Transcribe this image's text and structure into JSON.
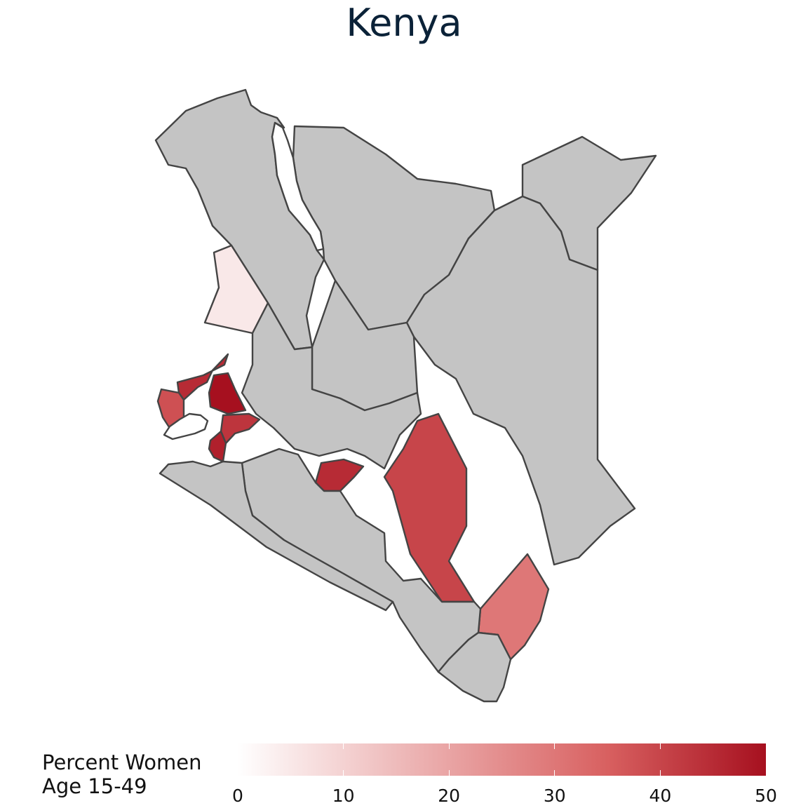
{
  "map": {
    "title": "Kenya",
    "regions": [
      {
        "name": "north-west",
        "value": null
      },
      {
        "name": "north",
        "value": null
      },
      {
        "name": "north-east",
        "value": null
      },
      {
        "name": "east",
        "value": null
      },
      {
        "name": "lodwar-sw",
        "value": 5
      },
      {
        "name": "central-north",
        "value": null
      },
      {
        "name": "central",
        "value": null
      },
      {
        "name": "west-a",
        "value": 45
      },
      {
        "name": "west-b",
        "value": 50
      },
      {
        "name": "west-c",
        "value": 38
      },
      {
        "name": "west-d",
        "value": 43
      },
      {
        "name": "west-e",
        "value": 47
      },
      {
        "name": "nairobi-area",
        "value": 45
      },
      {
        "name": "kitui",
        "value": 40
      },
      {
        "name": "kilifi",
        "value": 30
      },
      {
        "name": "south-central",
        "value": null
      },
      {
        "name": "south-west",
        "value": null
      },
      {
        "name": "coast-south",
        "value": null
      }
    ]
  },
  "legend": {
    "title_line1": "Percent Women",
    "title_line2": "Age 15-49",
    "min": 0,
    "max": 50,
    "ticks": [
      "0",
      "10",
      "20",
      "30",
      "40",
      "50"
    ],
    "color_low": "#ffffff",
    "color_high": "#a6101f",
    "no_data_color": "#c4c4c4",
    "border_color": "#444444"
  }
}
